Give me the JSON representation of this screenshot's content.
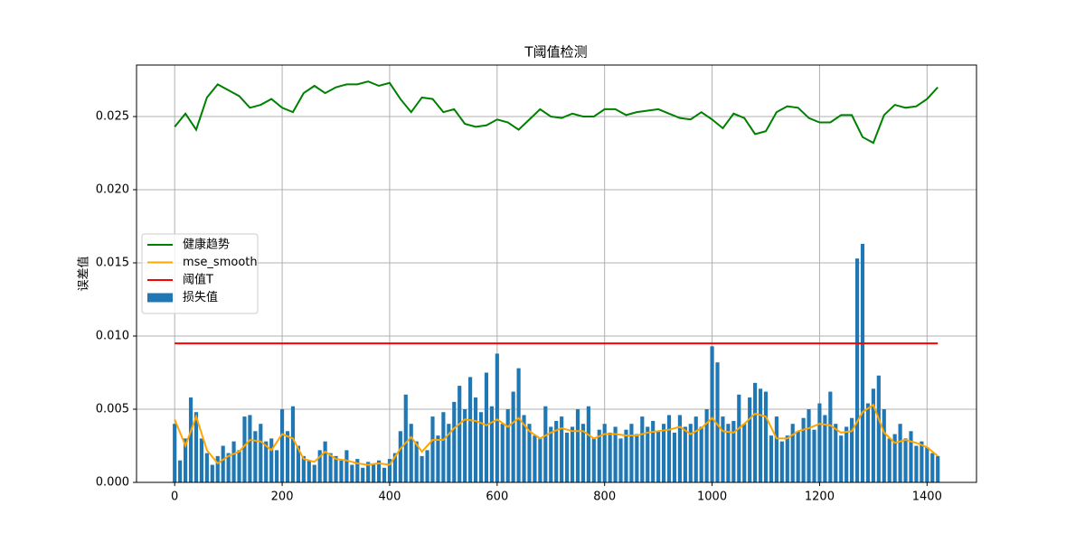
{
  "chart_data": {
    "type": "combo",
    "title": "T阈值检测",
    "ylabel": "误差值",
    "xlim": [
      -71,
      1492
    ],
    "ylim": [
      0,
      0.02852
    ],
    "xticks": [
      0,
      200,
      400,
      600,
      800,
      1000,
      1200,
      1400
    ],
    "yticks": [
      {
        "value": 0,
        "label": "0.000"
      },
      {
        "value": 0.005,
        "label": "0.005"
      },
      {
        "value": 0.01,
        "label": "0.010"
      },
      {
        "value": 0.015,
        "label": "0.015"
      },
      {
        "value": 0.02,
        "label": "0.020"
      },
      {
        "value": 0.025,
        "label": "0.025"
      }
    ],
    "grid": true,
    "legend": "center left",
    "series": [
      {
        "name": "健康趋势",
        "type": "line",
        "color": "#008000",
        "x": [
          0,
          20,
          40,
          60,
          80,
          100,
          120,
          140,
          160,
          180,
          200,
          220,
          240,
          260,
          280,
          300,
          320,
          340,
          360,
          380,
          400,
          420,
          440,
          460,
          480,
          500,
          520,
          540,
          560,
          580,
          600,
          620,
          640,
          660,
          680,
          700,
          720,
          740,
          760,
          780,
          800,
          820,
          840,
          860,
          880,
          900,
          920,
          940,
          960,
          980,
          1000,
          1020,
          1040,
          1060,
          1080,
          1100,
          1120,
          1140,
          1160,
          1180,
          1200,
          1220,
          1240,
          1260,
          1280,
          1300,
          1320,
          1340,
          1360,
          1380,
          1400,
          1420
        ],
        "values": [
          0.0243,
          0.0252,
          0.0241,
          0.0263,
          0.0272,
          0.0268,
          0.0264,
          0.0256,
          0.0258,
          0.0262,
          0.0256,
          0.0253,
          0.0266,
          0.0271,
          0.0266,
          0.027,
          0.0272,
          0.0272,
          0.0274,
          0.0271,
          0.0273,
          0.0262,
          0.0253,
          0.0263,
          0.0262,
          0.0253,
          0.0255,
          0.0245,
          0.0243,
          0.0244,
          0.0248,
          0.0246,
          0.0241,
          0.0248,
          0.0255,
          0.025,
          0.0249,
          0.0252,
          0.025,
          0.025,
          0.0255,
          0.0255,
          0.0251,
          0.0253,
          0.0254,
          0.0255,
          0.0252,
          0.0249,
          0.0248,
          0.0253,
          0.0248,
          0.0242,
          0.0252,
          0.0249,
          0.0238,
          0.024,
          0.0253,
          0.0257,
          0.0256,
          0.0249,
          0.0246,
          0.0246,
          0.0251,
          0.0251,
          0.0236,
          0.0232,
          0.0251,
          0.0258,
          0.0256,
          0.0257,
          0.0262,
          0.027
        ]
      },
      {
        "name": "mse_smooth",
        "type": "line",
        "color": "#ffa500",
        "x": [
          0,
          20,
          40,
          60,
          80,
          100,
          120,
          140,
          160,
          180,
          200,
          220,
          240,
          260,
          280,
          300,
          320,
          340,
          360,
          380,
          400,
          420,
          440,
          460,
          480,
          500,
          520,
          540,
          560,
          580,
          600,
          620,
          640,
          660,
          680,
          700,
          720,
          740,
          760,
          780,
          800,
          820,
          840,
          860,
          880,
          900,
          920,
          940,
          960,
          980,
          1000,
          1020,
          1040,
          1060,
          1080,
          1100,
          1120,
          1140,
          1160,
          1180,
          1200,
          1220,
          1240,
          1260,
          1280,
          1300,
          1320,
          1340,
          1360,
          1380,
          1400,
          1420
        ],
        "values": [
          0.0043,
          0.0025,
          0.0045,
          0.0022,
          0.0013,
          0.0018,
          0.0021,
          0.0029,
          0.0028,
          0.0022,
          0.0033,
          0.003,
          0.0016,
          0.0014,
          0.0021,
          0.0016,
          0.0015,
          0.0013,
          0.0012,
          0.0013,
          0.0012,
          0.0023,
          0.0031,
          0.0021,
          0.0029,
          0.0029,
          0.0037,
          0.0043,
          0.0042,
          0.0039,
          0.0043,
          0.0038,
          0.0044,
          0.0035,
          0.003,
          0.0034,
          0.0037,
          0.0035,
          0.0035,
          0.003,
          0.0033,
          0.0033,
          0.0032,
          0.0032,
          0.0034,
          0.0035,
          0.0036,
          0.0038,
          0.0033,
          0.0037,
          0.0044,
          0.0035,
          0.0034,
          0.004,
          0.0047,
          0.0045,
          0.003,
          0.003,
          0.0035,
          0.0037,
          0.004,
          0.0039,
          0.0034,
          0.0035,
          0.0048,
          0.0053,
          0.0034,
          0.0027,
          0.0029,
          0.0027,
          0.0024,
          0.0018
        ]
      },
      {
        "name": "阈值T",
        "type": "line",
        "color": "#ff0000",
        "x": [
          0,
          1420
        ],
        "values": [
          0.0095,
          0.0095
        ]
      },
      {
        "name": "损失值",
        "type": "bar",
        "color": "#1f77b4",
        "width": 7,
        "x": [
          0,
          10,
          20,
          30,
          40,
          50,
          60,
          70,
          80,
          90,
          100,
          110,
          120,
          130,
          140,
          150,
          160,
          170,
          180,
          190,
          200,
          210,
          220,
          230,
          240,
          250,
          260,
          270,
          280,
          290,
          300,
          310,
          320,
          330,
          340,
          350,
          360,
          370,
          380,
          390,
          400,
          410,
          420,
          430,
          440,
          450,
          460,
          470,
          480,
          490,
          500,
          510,
          520,
          530,
          540,
          550,
          560,
          570,
          580,
          590,
          600,
          610,
          620,
          630,
          640,
          650,
          660,
          670,
          680,
          690,
          700,
          710,
          720,
          730,
          740,
          750,
          760,
          770,
          780,
          790,
          800,
          810,
          820,
          830,
          840,
          850,
          860,
          870,
          880,
          890,
          900,
          910,
          920,
          930,
          940,
          950,
          960,
          970,
          980,
          990,
          1000,
          1010,
          1020,
          1030,
          1040,
          1050,
          1060,
          1070,
          1080,
          1090,
          1100,
          1110,
          1120,
          1130,
          1140,
          1150,
          1160,
          1170,
          1180,
          1190,
          1200,
          1210,
          1220,
          1230,
          1240,
          1250,
          1260,
          1270,
          1280,
          1290,
          1300,
          1310,
          1320,
          1330,
          1340,
          1350,
          1360,
          1370,
          1380,
          1390,
          1400,
          1410,
          1420
        ],
        "values": [
          0.004,
          0.0015,
          0.003,
          0.0058,
          0.0048,
          0.003,
          0.002,
          0.0012,
          0.0018,
          0.0025,
          0.002,
          0.0028,
          0.0022,
          0.0045,
          0.0046,
          0.0035,
          0.004,
          0.0028,
          0.003,
          0.0022,
          0.005,
          0.0035,
          0.0052,
          0.0025,
          0.0018,
          0.0015,
          0.0012,
          0.0022,
          0.0028,
          0.002,
          0.0018,
          0.0015,
          0.0022,
          0.0012,
          0.0016,
          0.001,
          0.0014,
          0.0012,
          0.0015,
          0.001,
          0.0016,
          0.002,
          0.0035,
          0.006,
          0.004,
          0.0028,
          0.0018,
          0.0022,
          0.0045,
          0.0032,
          0.0048,
          0.004,
          0.0055,
          0.0066,
          0.005,
          0.0072,
          0.0058,
          0.0048,
          0.0075,
          0.0052,
          0.0088,
          0.004,
          0.005,
          0.0062,
          0.0078,
          0.0046,
          0.004,
          0.0032,
          0.003,
          0.0052,
          0.0038,
          0.0042,
          0.0045,
          0.0034,
          0.0038,
          0.005,
          0.004,
          0.0052,
          0.003,
          0.0036,
          0.004,
          0.0034,
          0.0038,
          0.003,
          0.0036,
          0.004,
          0.0033,
          0.0045,
          0.0038,
          0.0042,
          0.0035,
          0.004,
          0.0046,
          0.0034,
          0.0046,
          0.0038,
          0.004,
          0.0045,
          0.0038,
          0.005,
          0.0093,
          0.0082,
          0.0045,
          0.004,
          0.0042,
          0.006,
          0.004,
          0.0058,
          0.0068,
          0.0064,
          0.0062,
          0.0032,
          0.0045,
          0.0028,
          0.0032,
          0.004,
          0.0035,
          0.0044,
          0.005,
          0.0036,
          0.0054,
          0.0046,
          0.0062,
          0.004,
          0.0032,
          0.0038,
          0.0044,
          0.0153,
          0.0163,
          0.0054,
          0.0064,
          0.0073,
          0.005,
          0.003,
          0.0033,
          0.004,
          0.003,
          0.0035,
          0.0025,
          0.0028,
          0.0024,
          0.002,
          0.0018
        ]
      }
    ]
  }
}
